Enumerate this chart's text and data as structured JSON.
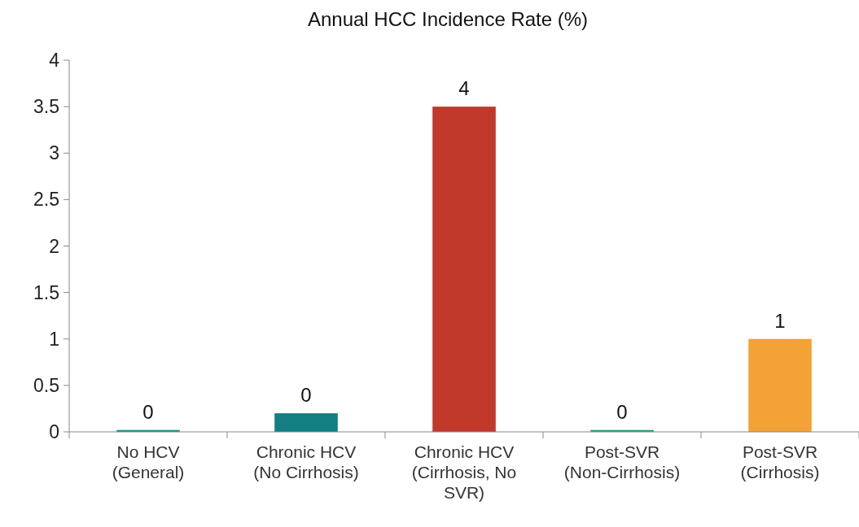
{
  "chart_data": {
    "type": "bar",
    "title": "Annual HCC Incidence Rate (%)",
    "categories": [
      "No HCV (General)",
      "Chronic HCV (No Cirrhosis)",
      "Chronic HCV (Cirrhosis, No SVR)",
      "Post-SVR (Non-Cirrhosis)",
      "Post-SVR (Cirrhosis)"
    ],
    "values": [
      0.02,
      0.2,
      3.5,
      0.02,
      1.0
    ],
    "colors": [
      "#1a8a86",
      "#137f82",
      "#c0392b",
      "#2e9e6e",
      "#f4a236"
    ],
    "value_labels": [
      "0",
      "0",
      "4",
      "0",
      "1"
    ],
    "ylim": [
      0,
      4
    ],
    "yticks": [
      0,
      0.5,
      1,
      1.5,
      2,
      2.5,
      3,
      3.5,
      4
    ],
    "grid": false
  }
}
